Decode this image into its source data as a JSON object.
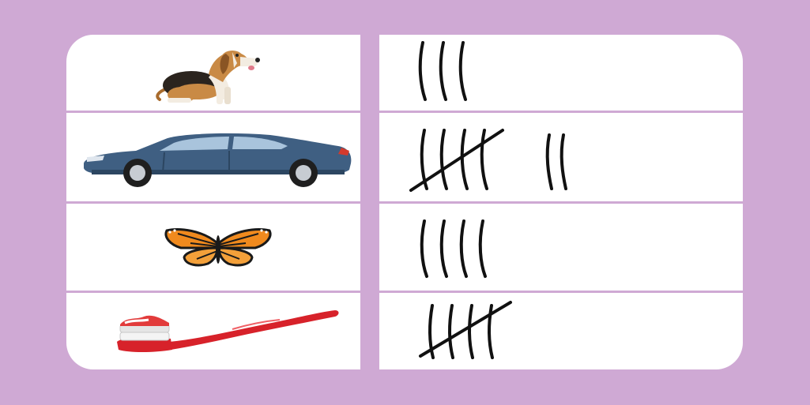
{
  "colors": {
    "background": "#cfa9d4",
    "board": "#ffffff",
    "grid_line": "#cfa9d4",
    "tally_stroke": "#111111"
  },
  "rows": [
    {
      "item": "dog",
      "icon": "dog-icon",
      "tally": 3
    },
    {
      "item": "car",
      "icon": "car-icon",
      "tally": 7
    },
    {
      "item": "butterfly",
      "icon": "butterfly-icon",
      "tally": 4
    },
    {
      "item": "toothbrush",
      "icon": "toothbrush-icon",
      "tally": 5
    }
  ]
}
